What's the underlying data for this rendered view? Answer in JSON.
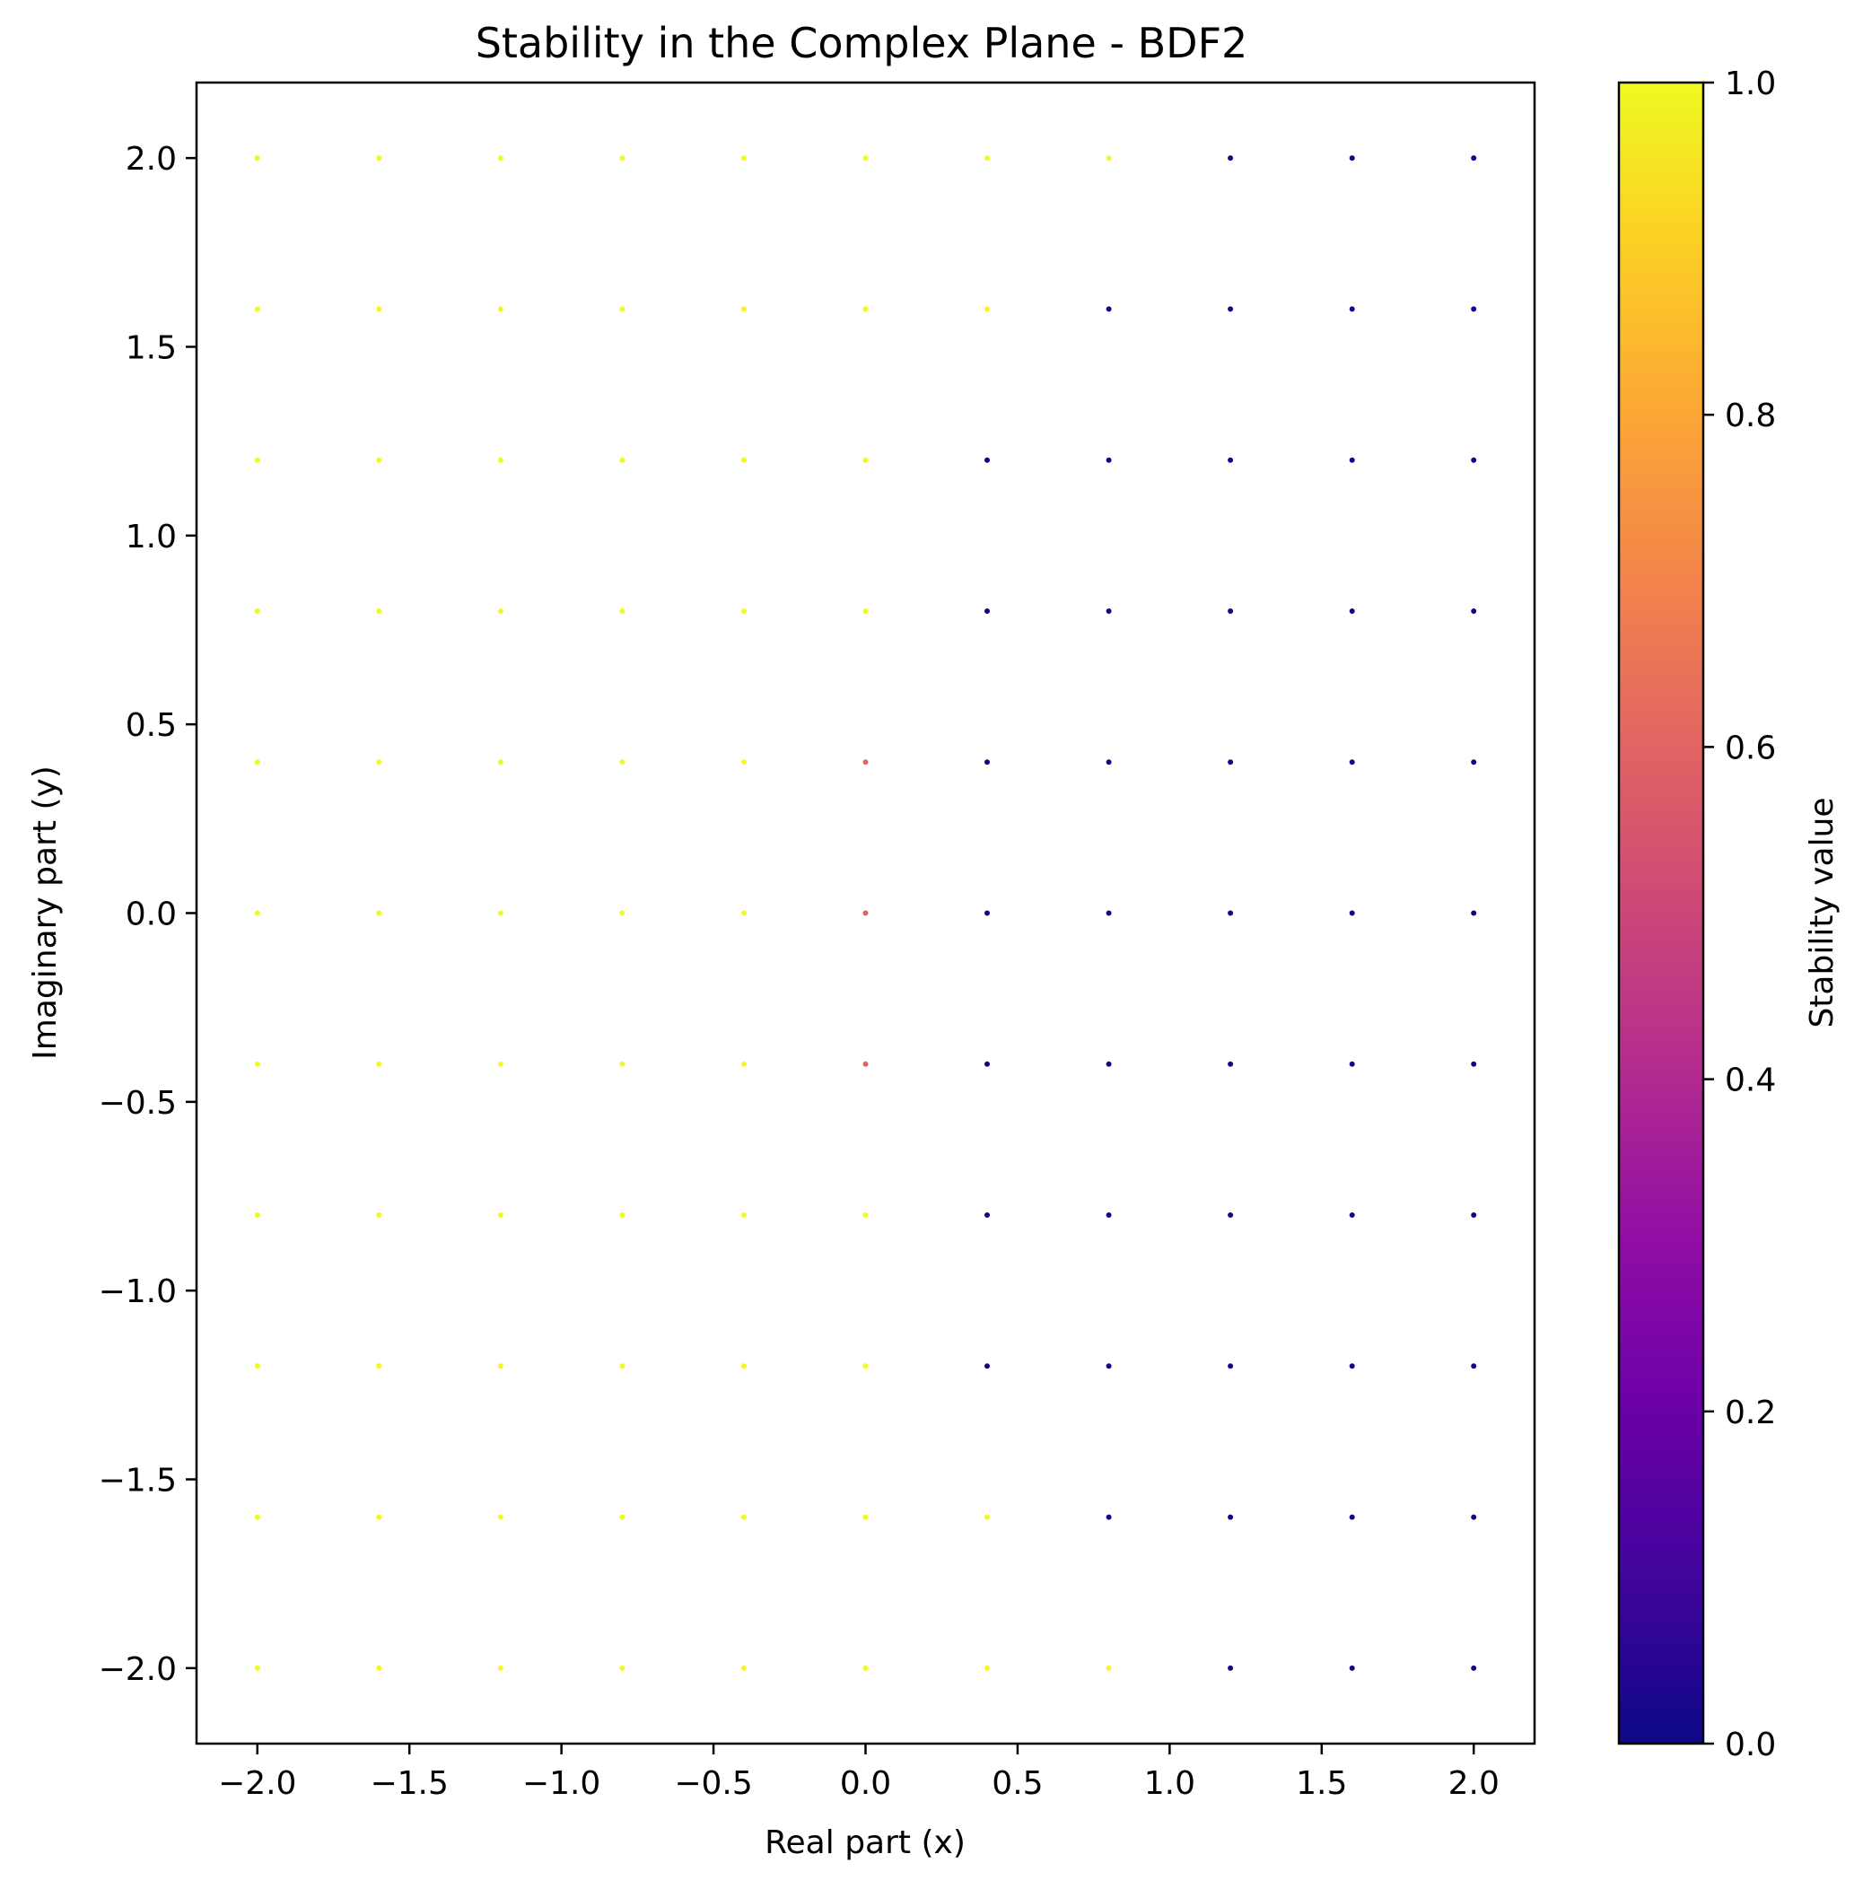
{
  "chart_data": {
    "type": "scatter",
    "title": "Stability in the Complex Plane - BDF2",
    "xlabel": "Real part (x)",
    "ylabel": "Imaginary part (y)",
    "xlim": [
      -2.2,
      2.2
    ],
    "ylim": [
      -2.2,
      2.2
    ],
    "x_ticks": [
      -2.0,
      -1.5,
      -1.0,
      -0.5,
      0.0,
      0.5,
      1.0,
      1.5,
      2.0
    ],
    "y_ticks": [
      -2.0,
      -1.5,
      -1.0,
      -0.5,
      0.0,
      0.5,
      1.0,
      1.5,
      2.0
    ],
    "x_tick_labels": [
      "−2.0",
      "−1.5",
      "−1.0",
      "−0.5",
      "0.0",
      "0.5",
      "1.0",
      "1.5",
      "2.0"
    ],
    "y_tick_labels": [
      "−2.0",
      "−1.5",
      "−1.0",
      "−0.5",
      "0.0",
      "0.5",
      "1.0",
      "1.5",
      "2.0"
    ],
    "grid": false,
    "colormap": "plasma",
    "x": [
      -2.0,
      -1.6,
      -1.2,
      -0.8,
      -0.4,
      0.0,
      0.4,
      0.8,
      1.2,
      1.6,
      2.0
    ],
    "y": [
      2.0,
      1.6,
      1.2,
      0.8,
      0.4,
      0.0,
      -0.4,
      -0.8,
      -1.2,
      -1.6,
      -2.0
    ],
    "values": [
      [
        1,
        1,
        1,
        1,
        1,
        1,
        1,
        1,
        0,
        0,
        0
      ],
      [
        1,
        1,
        1,
        1,
        1,
        1,
        1,
        0,
        0,
        0,
        0
      ],
      [
        1,
        1,
        1,
        1,
        1,
        1,
        0,
        0,
        0,
        0,
        0
      ],
      [
        1,
        1,
        1,
        1,
        1,
        1,
        0,
        0,
        0,
        0,
        0
      ],
      [
        1,
        1,
        1,
        1,
        1,
        0.6,
        0,
        0,
        0,
        0,
        0
      ],
      [
        1,
        1,
        1,
        1,
        1,
        0.6,
        0,
        0,
        0,
        0,
        0
      ],
      [
        1,
        1,
        1,
        1,
        1,
        0.6,
        0,
        0,
        0,
        0,
        0
      ],
      [
        1,
        1,
        1,
        1,
        1,
        1,
        0,
        0,
        0,
        0,
        0
      ],
      [
        1,
        1,
        1,
        1,
        1,
        1,
        0,
        0,
        0,
        0,
        0
      ],
      [
        1,
        1,
        1,
        1,
        1,
        1,
        1,
        0,
        0,
        0,
        0
      ],
      [
        1,
        1,
        1,
        1,
        1,
        1,
        1,
        1,
        0,
        0,
        0
      ]
    ],
    "colorbar": {
      "label": "Stability value",
      "range": [
        0.0,
        1.0
      ],
      "ticks": [
        0.0,
        0.2,
        0.4,
        0.6,
        0.8,
        1.0
      ],
      "tick_labels": [
        "0.0",
        "0.2",
        "0.4",
        "0.6",
        "0.8",
        "1.0"
      ]
    }
  }
}
